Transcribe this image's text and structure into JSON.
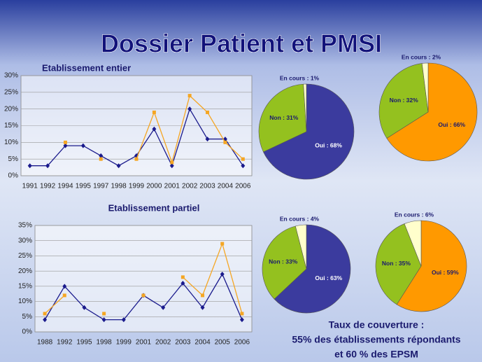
{
  "title": "Dossier Patient et PMSI",
  "coverage_text": [
    "Taux de couverture :",
    "55% des établissements répondants",
    "et 60 % des EPSM"
  ],
  "chart_data": [
    {
      "type": "line",
      "title": "Etablissement entier",
      "categories": [
        "1991",
        "1992",
        "1994",
        "1995",
        "1997",
        "1998",
        "1999",
        "2000",
        "2001",
        "2002",
        "2003",
        "2004",
        "2006"
      ],
      "series": [
        {
          "color": "#1a1a8c",
          "marker": "diamond",
          "values": [
            3,
            3,
            9,
            9,
            6,
            3,
            6,
            14,
            3,
            20,
            11,
            11,
            3
          ]
        },
        {
          "color": "#f5a623",
          "marker": "square",
          "values": [
            null,
            null,
            10,
            null,
            5,
            null,
            5,
            19,
            4,
            24,
            19,
            10,
            5
          ]
        }
      ],
      "ylim": [
        0,
        30
      ],
      "yticks": [
        {
          "value": 0,
          "label": "0%"
        },
        {
          "value": 5,
          "label": "5%"
        },
        {
          "value": 10,
          "label": "10%"
        },
        {
          "value": 15,
          "label": "15%"
        },
        {
          "value": 20,
          "label": "20%"
        },
        {
          "value": 25,
          "label": "25%"
        },
        {
          "value": 30,
          "label": "30%"
        }
      ],
      "grid": true
    },
    {
      "type": "line",
      "title": "Etablissement partiel",
      "categories": [
        "1988",
        "1992",
        "1995",
        "1998",
        "1999",
        "2001",
        "2002",
        "2003",
        "2004",
        "2005",
        "2006"
      ],
      "series": [
        {
          "color": "#1a1a8c",
          "marker": "diamond",
          "values": [
            4,
            15,
            8,
            4,
            4,
            12,
            8,
            16,
            8,
            19,
            4
          ]
        },
        {
          "color": "#f5a623",
          "marker": "square",
          "values": [
            6,
            12,
            null,
            6,
            null,
            12,
            null,
            18,
            12,
            29,
            6
          ]
        }
      ],
      "ylim": [
        0,
        35
      ],
      "yticks": [
        {
          "value": 0,
          "label": "0%"
        },
        {
          "value": 5,
          "label": "5%"
        },
        {
          "value": 10,
          "label": "10%"
        },
        {
          "value": 15,
          "label": "15%"
        },
        {
          "value": 20,
          "label": "20%"
        },
        {
          "value": 25,
          "label": "25%"
        },
        {
          "value": 30,
          "label": "30%"
        },
        {
          "value": 35,
          "label": "35%"
        }
      ],
      "grid": true
    },
    {
      "type": "pie",
      "values": [
        68,
        31,
        1
      ],
      "value_labels": [
        "Oui : 68%",
        "Non : 31%",
        "En cours : 1%"
      ],
      "colors": [
        "#3b3b9e",
        "#94c11f",
        "#ffffcc"
      ]
    },
    {
      "type": "pie",
      "values": [
        66,
        32,
        2
      ],
      "value_labels": [
        "Oui : 66%",
        "Non : 32%",
        "En cours : 2%"
      ],
      "colors": [
        "#ff9900",
        "#94c11f",
        "#ffffcc"
      ]
    },
    {
      "type": "pie",
      "values": [
        63,
        33,
        4
      ],
      "value_labels": [
        "Oui : 63%",
        "Non : 33%",
        "En cours : 4%"
      ],
      "colors": [
        "#3b3b9e",
        "#94c11f",
        "#ffffcc"
      ]
    },
    {
      "type": "pie",
      "values": [
        59,
        35,
        6
      ],
      "value_labels": [
        "Oui : 59%",
        "Non : 35%",
        "En cours : 6%"
      ],
      "colors": [
        "#ff9900",
        "#94c11f",
        "#ffffcc"
      ]
    }
  ]
}
